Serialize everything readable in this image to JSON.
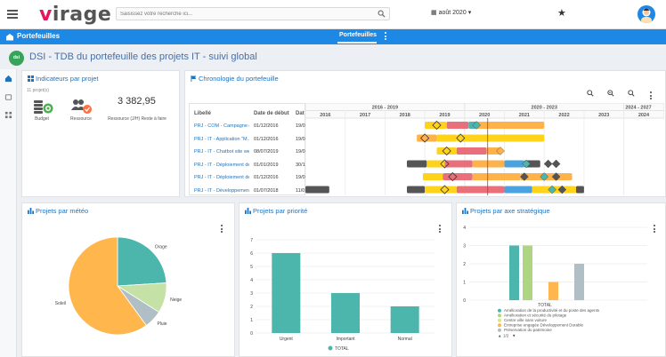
{
  "header": {
    "logo_prefix": "v",
    "logo_rest": "irage",
    "search_placeholder": "Saisissez votre recherche ici...",
    "date_label": "août 2020"
  },
  "nav": {
    "section_title": "Portefeuilles",
    "tab_label": "Portefeuilles"
  },
  "page": {
    "badge": "dsi",
    "title": "DSI - TDB du portefeuille des projets IT - suivi global"
  },
  "indicators": {
    "title": "Indicateurs par projet",
    "subtitle": "11 projet(s)",
    "items": [
      {
        "label": "Budget",
        "icon": "budget-coins-icon"
      },
      {
        "label": "Ressource",
        "icon": "people-icon"
      },
      {
        "label": "Ressource (J/H) Reste à faire",
        "value": "3 382,95"
      }
    ]
  },
  "gantt": {
    "title": "Chronologie du portefeuille",
    "columns": [
      "Libellé",
      "Date de début",
      "Dat"
    ],
    "period_groups": [
      "2016 - 2019",
      "2020 - 2023",
      "2024 - 2027"
    ],
    "years": [
      "2016",
      "2017",
      "2018",
      "2019",
      "2020",
      "2021",
      "2022",
      "2023",
      "2024"
    ],
    "rows": [
      {
        "label": "PRJ - COM - Campagne de...",
        "start": "01/12/2016",
        "end_cut": "19/0"
      },
      {
        "label": "PRJ - IT - Application \"M...",
        "start": "01/12/2016",
        "end_cut": "19/0"
      },
      {
        "label": "PRJ - IT - Chatbot site web",
        "start": "08/07/2019",
        "end_cut": "19/0"
      },
      {
        "label": "PRJ - IT - Déploiement de...",
        "start": "01/01/2019",
        "end_cut": "30/1"
      },
      {
        "label": "PRJ - IT - Déploiement de...",
        "start": "01/12/2016",
        "end_cut": "19/0"
      },
      {
        "label": "PRJ - IT - Développement...",
        "start": "01/07/2018",
        "end_cut": "11/0"
      }
    ],
    "colors": {
      "dark": "#555555",
      "yellow": "#ffd31a",
      "red": "#e9707a",
      "orange": "#ffb14a",
      "blue": "#4aa3df",
      "green": "#4db6ac",
      "today": "#c0392b"
    }
  },
  "weather": {
    "title": "Projets par météo",
    "chart_data": {
      "type": "pie",
      "categories": [
        "Soleil",
        "Orage",
        "Neige",
        "Pluie"
      ],
      "values": [
        60,
        24,
        10,
        6
      ],
      "colors": [
        "#ffb74d",
        "#4db6ac",
        "#c5e1a5",
        "#b0bec5"
      ]
    }
  },
  "priority": {
    "title": "Projets par priorité",
    "legend": "TOTAL",
    "chart_data": {
      "type": "bar",
      "categories": [
        "Urgent",
        "Important",
        "Normal"
      ],
      "series": [
        {
          "name": "TOTAL",
          "values": [
            6,
            3,
            2
          ]
        }
      ],
      "ylim": [
        0,
        7
      ],
      "yticks": [
        0,
        1,
        2,
        3,
        4,
        5,
        6,
        7
      ],
      "color": "#4db6ac"
    }
  },
  "strategy": {
    "title": "Projets par axe stratégique",
    "xlabel": "TOTAL",
    "pager": "1/2",
    "chart_data": {
      "type": "bar",
      "categories": [
        "TOTAL"
      ],
      "series": [
        {
          "name": "Amélioration de la productivité et du poste des agents",
          "values": [
            3
          ],
          "color": "#4db6ac"
        },
        {
          "name": "Amélioration et sécurité du pilotage",
          "values": [
            3
          ],
          "color": "#aed581"
        },
        {
          "name": "Centre ville sans voiture",
          "values": [
            0
          ],
          "color": "#dce775"
        },
        {
          "name": "Entreprise engagée Développement Durable",
          "values": [
            1
          ],
          "color": "#ffb74d"
        },
        {
          "name": "Préservation du patrimoine",
          "values": [
            2
          ],
          "color": "#b0bec5"
        }
      ],
      "ylim": [
        0,
        4
      ],
      "yticks": [
        0,
        1,
        2,
        3,
        4
      ]
    }
  }
}
